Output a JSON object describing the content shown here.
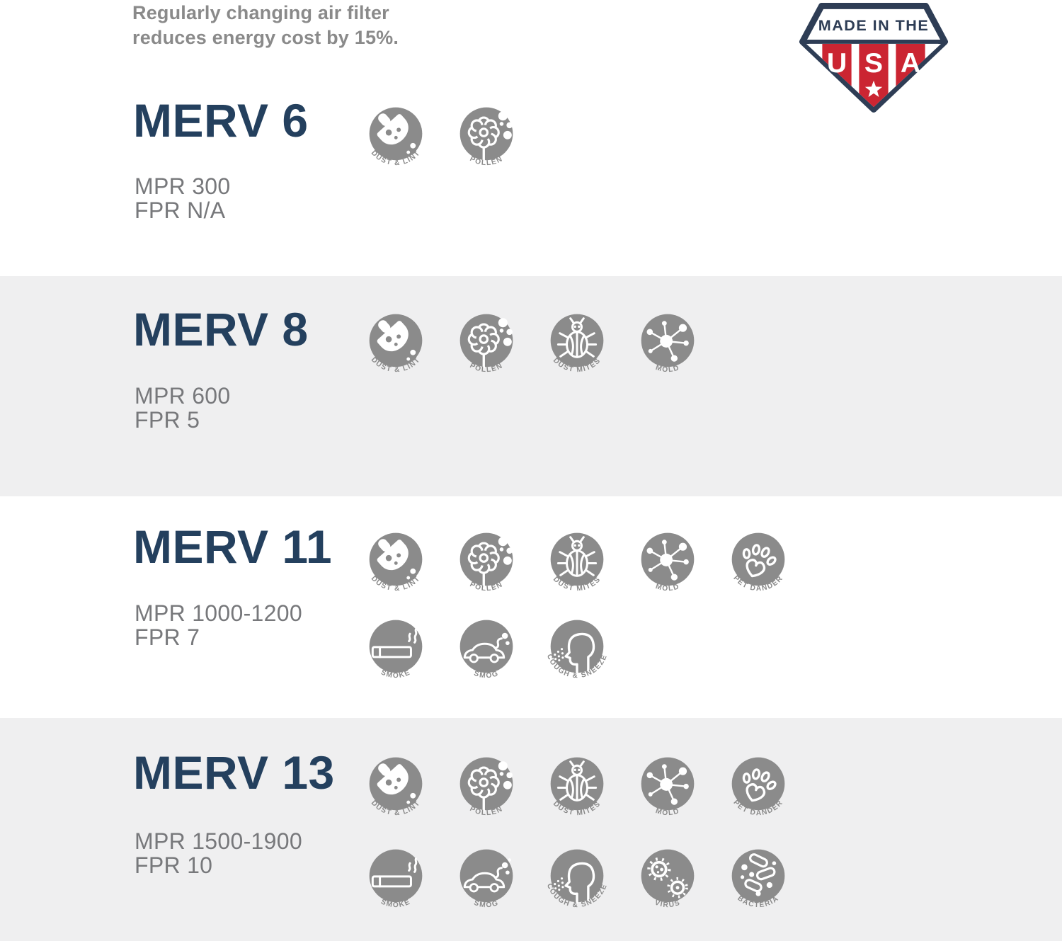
{
  "header": {
    "note_lines": [
      "Regularly changing air filter",
      "reduces energy cost by 15%."
    ],
    "badge": {
      "banner": "MADE IN THE",
      "letters": [
        "U",
        "S",
        "A"
      ]
    }
  },
  "icon_labels": {
    "dust-lint": "DUST & LINT",
    "pollen": "POLLEN",
    "dust-mites": "DUST MITES",
    "mold": "MOLD",
    "pet-dander": "PET DANDER",
    "smoke": "SMOKE",
    "smog": "SMOG",
    "cough-sneeze": "COUGH & SNEEZE",
    "virus": "VIRUS",
    "bacteria": "BACTERIA"
  },
  "sections": [
    {
      "title": "MERV 6",
      "mpr": "MPR 300",
      "fpr": "FPR N/A",
      "icon_rows": [
        [
          "dust-lint",
          "pollen"
        ]
      ]
    },
    {
      "title": "MERV 8",
      "mpr": "MPR 600",
      "fpr": "FPR 5",
      "icon_rows": [
        [
          "dust-lint",
          "pollen",
          "dust-mites",
          "mold"
        ]
      ]
    },
    {
      "title": "MERV 11",
      "mpr": "MPR 1000-1200",
      "fpr": "FPR 7",
      "icon_rows": [
        [
          "dust-lint",
          "pollen",
          "dust-mites",
          "mold",
          "pet-dander"
        ],
        [
          "smoke",
          "smog",
          "cough-sneeze"
        ]
      ]
    },
    {
      "title": "MERV 13",
      "mpr": "MPR 1500-1900",
      "fpr": "FPR 10",
      "icon_rows": [
        [
          "dust-lint",
          "pollen",
          "dust-mites",
          "mold",
          "pet-dander"
        ],
        [
          "smoke",
          "smog",
          "cough-sneeze",
          "virus",
          "bacteria"
        ]
      ]
    }
  ],
  "colors": {
    "title_navy": "#24405e",
    "note_gray": "#8a8a8a",
    "spec_gray": "#77787b",
    "icon_disc_gray": "#8b8b8b",
    "band_gray": "#efeff0",
    "badge_red": "#cb2532",
    "badge_navy": "#2e3d55"
  }
}
